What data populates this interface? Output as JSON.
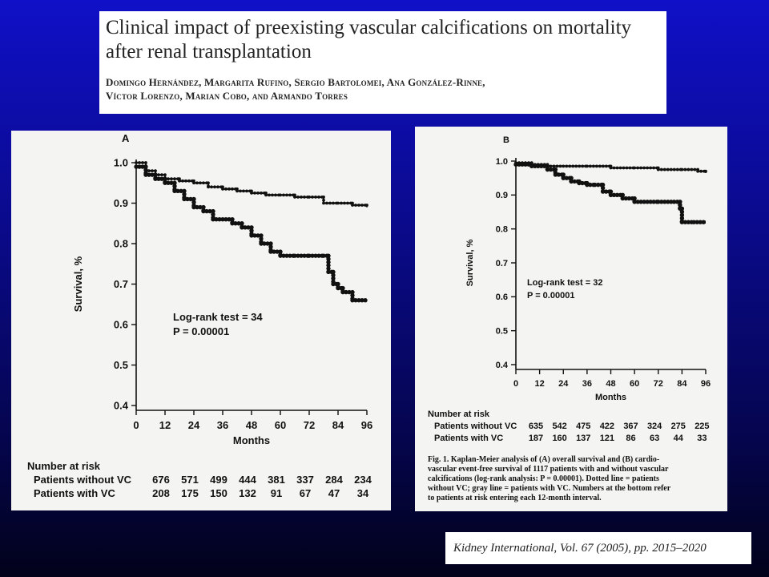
{
  "header": {
    "title_line1": "Clinical impact of preexisting vascular calcifications on mortality",
    "title_line2": "after renal transplantation",
    "authors_line1": "Domingo Hernández, Margarita Rufino, Sergio Bartolomei, Ana González-Rinne,",
    "authors_line2": "Víctor Lorenzo, Marian Cobo, and Armando Torres"
  },
  "citation": "Kidney International, Vol. 67 (2005), pp. 2015–2020",
  "caption": [
    "Fig. 1. Kaplan-Meier analysis of (A) overall survival and (B) cardio-",
    "vascular event-free survival of 1117 patients with and without vascular",
    "calcifications (log-rank analysis: P = 0.00001). Dotted line = patients",
    "without VC; gray line = patients with VC. Numbers at the bottom refer",
    "to patients at risk entering each 12-month interval."
  ],
  "chart_data": [
    {
      "type": "line",
      "panel": "A",
      "ylabel": "Survival, %",
      "xlabel": "Months",
      "xlim": [
        0,
        96
      ],
      "ylim": [
        0.4,
        1.0
      ],
      "xticks": [
        0,
        12,
        24,
        36,
        48,
        60,
        72,
        84,
        96
      ],
      "yticks": [
        0.4,
        0.5,
        0.6,
        0.7,
        0.8,
        0.9,
        1.0
      ],
      "ytick_labels": [
        "0.4",
        "0.5",
        "0.6",
        "0.7",
        "0.8",
        "0.9",
        "1.0"
      ],
      "annotation": [
        "Log-rank test = 34",
        "P = 0.00001"
      ],
      "series": [
        {
          "name": "Patients without VC",
          "x": [
            0,
            4,
            8,
            12,
            18,
            24,
            30,
            36,
            42,
            48,
            54,
            60,
            66,
            72,
            78,
            84,
            90,
            96
          ],
          "y": [
            1.0,
            0.98,
            0.97,
            0.96,
            0.955,
            0.95,
            0.94,
            0.935,
            0.93,
            0.925,
            0.92,
            0.92,
            0.915,
            0.915,
            0.9,
            0.9,
            0.895,
            0.89
          ]
        },
        {
          "name": "Patients with VC",
          "x": [
            0,
            4,
            8,
            12,
            16,
            20,
            24,
            28,
            32,
            36,
            40,
            44,
            48,
            52,
            56,
            60,
            66,
            72,
            78,
            80,
            82,
            84,
            86,
            90,
            96
          ],
          "y": [
            0.99,
            0.97,
            0.96,
            0.95,
            0.93,
            0.91,
            0.89,
            0.88,
            0.86,
            0.86,
            0.85,
            0.84,
            0.82,
            0.8,
            0.78,
            0.77,
            0.77,
            0.77,
            0.77,
            0.73,
            0.7,
            0.69,
            0.68,
            0.66,
            0.66
          ]
        }
      ],
      "risk_table": {
        "title": "Number at risk",
        "rows": [
          {
            "label": "Patients without VC",
            "values": [
              "676",
              "571",
              "499",
              "444",
              "381",
              "337",
              "284",
              "234"
            ]
          },
          {
            "label": "Patients with VC",
            "values": [
              "208",
              "175",
              "150",
              "132",
              "91",
              "67",
              "47",
              "34"
            ]
          }
        ]
      }
    },
    {
      "type": "line",
      "panel": "B",
      "ylabel": "Survival, %",
      "xlabel": "Months",
      "xlim": [
        0,
        96
      ],
      "ylim": [
        0.4,
        1.0
      ],
      "xticks": [
        0,
        12,
        24,
        36,
        48,
        60,
        72,
        84,
        96
      ],
      "yticks": [
        0.4,
        0.5,
        0.6,
        0.7,
        0.8,
        0.9,
        1.0
      ],
      "ytick_labels": [
        "0.4",
        "0.5",
        "0.6",
        "0.7",
        "0.8",
        "0.9",
        "1.0"
      ],
      "annotation": [
        "Log-rank test = 32",
        "P = 0.00001"
      ],
      "series": [
        {
          "name": "Patients without VC",
          "x": [
            0,
            8,
            16,
            24,
            36,
            48,
            60,
            72,
            84,
            92,
            96
          ],
          "y": [
            0.995,
            0.99,
            0.985,
            0.985,
            0.985,
            0.98,
            0.98,
            0.975,
            0.975,
            0.97,
            0.965
          ]
        },
        {
          "name": "Patients with VC",
          "x": [
            0,
            8,
            16,
            20,
            24,
            28,
            32,
            36,
            40,
            44,
            48,
            54,
            60,
            72,
            80,
            83,
            84,
            90,
            96
          ],
          "y": [
            0.99,
            0.985,
            0.975,
            0.96,
            0.95,
            0.94,
            0.935,
            0.93,
            0.93,
            0.91,
            0.9,
            0.89,
            0.88,
            0.88,
            0.88,
            0.86,
            0.82,
            0.82,
            0.82
          ]
        }
      ],
      "risk_table": {
        "title": "Number at risk",
        "rows": [
          {
            "label": "Patients without VC",
            "values": [
              "635",
              "542",
              "475",
              "422",
              "367",
              "324",
              "275",
              "225"
            ]
          },
          {
            "label": "Patients with VC",
            "values": [
              "187",
              "160",
              "137",
              "121",
              "86",
              "63",
              "44",
              "33"
            ]
          }
        ]
      }
    }
  ]
}
